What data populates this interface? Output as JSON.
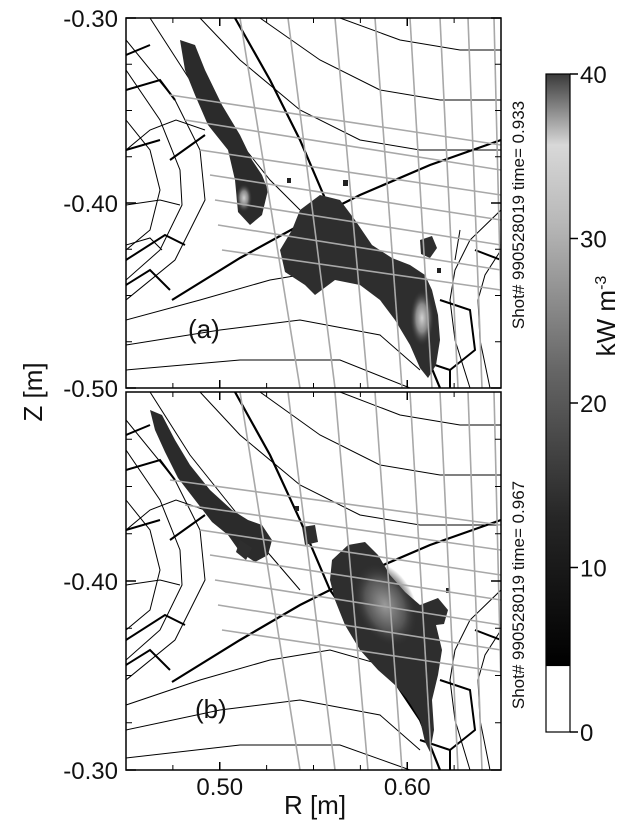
{
  "chart_data": {
    "type": "heatmap",
    "ylabel": "Z [m]",
    "xlabel": "R [m]",
    "xlim": [
      0.45,
      0.65
    ],
    "x_ticks": [
      "0.50",
      "0.60"
    ],
    "x_tick_values": [
      0.5,
      0.6
    ],
    "panels": [
      {
        "label": "(a)",
        "annotation": "Shot# 990528019 time= 0.933",
        "ylim": [
          -0.5,
          -0.3
        ],
        "y_ticks": [
          "-0.30",
          "-0.40",
          "-0.50"
        ],
        "y_tick_values": [
          -0.3,
          -0.4,
          -0.5
        ]
      },
      {
        "label": "(b)",
        "annotation": "Shot# 990528019 time= 0.967",
        "ylim": [
          -0.3,
          -0.5
        ],
        "y_ticks": [
          "-0.40",
          "-0.30"
        ],
        "y_tick_values": [
          -0.4,
          -0.3
        ]
      }
    ],
    "colorbar": {
      "label": "kW m",
      "label_superscript": "-3",
      "ticks": [
        "40",
        "30",
        "20",
        "10",
        "0"
      ],
      "tick_values": [
        40,
        30,
        20,
        10,
        0
      ],
      "range": [
        0,
        40
      ],
      "white_below": 4
    }
  }
}
